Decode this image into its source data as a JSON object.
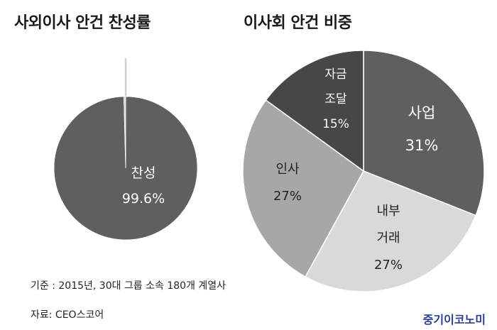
{
  "chart_data": [
    {
      "type": "pie",
      "title": "사외이사 안건 찬성률",
      "slices": [
        {
          "label": "찬성",
          "value": 99.6,
          "value_label": "99.6%",
          "color": "#5f5f5f",
          "text_color": "#ffffff"
        },
        {
          "label": "",
          "value": 0.4,
          "value_label": "",
          "color": "#cfcfcf",
          "text_color": "#ffffff"
        }
      ]
    },
    {
      "type": "pie",
      "title": "이사회 안건 비중",
      "slices": [
        {
          "label": "사업",
          "value": 31,
          "value_label": "31%",
          "color": "#5f5f5f",
          "text_color": "#ffffff"
        },
        {
          "label": "내부 거래",
          "value": 27,
          "value_label": "27%",
          "color": "#d9d9d9",
          "text_color": "#222222"
        },
        {
          "label": "인사",
          "value": 27,
          "value_label": "27%",
          "color": "#a7a7a7",
          "text_color": "#222222"
        },
        {
          "label": "자금 조달",
          "value": 15,
          "value_label": "15%",
          "color": "#474747",
          "text_color": "#ffffff"
        }
      ]
    }
  ],
  "notes": {
    "basis": "기준 : 2015년, 30대 그룹 소속 180개 계열사",
    "source": "자료: CEO스코어"
  },
  "brand": "중기이코노미"
}
